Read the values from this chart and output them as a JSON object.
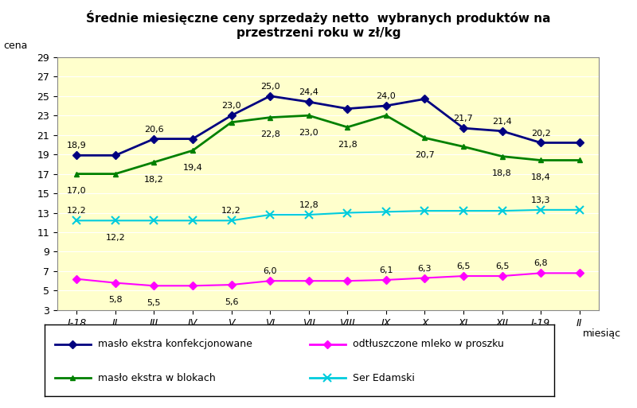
{
  "title": "Średnie miesięczne ceny sprzedaży netto  wybranych produktów na\nprzestrzeni roku w zł/kg",
  "ylabel": "cena",
  "xlabel_note": "miesiąc",
  "x_labels": [
    "I-18",
    "II",
    "III",
    "IV",
    "V",
    "VI",
    "VII",
    "VIII",
    "IX",
    "X",
    "XI",
    "XII",
    "I-19",
    "II"
  ],
  "plot_values": {
    "masło ekstra konfekcjonowane": [
      18.9,
      18.9,
      20.6,
      20.6,
      23.0,
      25.0,
      24.4,
      23.7,
      24.0,
      24.7,
      21.7,
      21.4,
      20.2,
      20.2
    ],
    "masło ekstra w blokach": [
      17.0,
      17.0,
      18.2,
      19.4,
      22.3,
      22.8,
      23.0,
      21.8,
      23.0,
      20.7,
      19.8,
      18.8,
      18.4,
      18.4
    ],
    "odtłuszczone mleko w proszku": [
      6.2,
      5.8,
      5.5,
      5.5,
      5.6,
      6.0,
      6.0,
      6.0,
      6.1,
      6.3,
      6.5,
      6.5,
      6.8,
      6.8
    ],
    "Ser Edamski": [
      12.2,
      12.2,
      12.2,
      12.2,
      12.2,
      12.8,
      12.8,
      13.0,
      13.1,
      13.2,
      13.2,
      13.2,
      13.3,
      13.3
    ]
  },
  "annot_display": {
    "masło ekstra konfekcjonowane": [
      18.9,
      null,
      20.6,
      null,
      23.0,
      25.0,
      24.4,
      null,
      24.0,
      null,
      21.7,
      21.4,
      20.2,
      null
    ],
    "masło ekstra w blokach": [
      17.0,
      null,
      18.2,
      19.4,
      null,
      22.8,
      23.0,
      21.8,
      null,
      20.7,
      null,
      18.8,
      18.4,
      null
    ],
    "odtłuszczone mleko w proszku": [
      null,
      5.8,
      5.5,
      null,
      5.6,
      6.0,
      null,
      null,
      6.1,
      6.3,
      6.5,
      6.5,
      6.8,
      null
    ],
    "Ser Edamski": [
      12.2,
      12.2,
      null,
      null,
      12.2,
      null,
      12.8,
      null,
      null,
      null,
      null,
      null,
      13.3,
      null
    ]
  },
  "annot_offsets": {
    "masło ekstra konfekcjonowane": [
      5,
      5,
      5,
      5,
      5,
      5,
      5,
      5,
      5,
      5,
      5,
      5,
      5,
      5
    ],
    "masło ekstra w blokach": [
      -12,
      -12,
      -12,
      -12,
      -12,
      -12,
      -12,
      -12,
      -12,
      -12,
      -12,
      -12,
      -12,
      -12
    ],
    "odtłuszczone mleko w proszku": [
      5,
      -12,
      -12,
      5,
      -12,
      5,
      5,
      5,
      5,
      5,
      5,
      5,
      5,
      5
    ],
    "Ser Edamski": [
      5,
      -12,
      5,
      5,
      5,
      5,
      5,
      5,
      5,
      5,
      5,
      5,
      5,
      5
    ]
  },
  "series_order": [
    "masło ekstra konfekcjonowane",
    "masło ekstra w blokach",
    "odtłuszczone mleko w proszku",
    "Ser Edamski"
  ],
  "colors": {
    "masło ekstra konfekcjonowane": "#000080",
    "masło ekstra w blokach": "#008000",
    "odtłuszczone mleko w proszku": "#FF00FF",
    "Ser Edamski": "#00CCDD"
  },
  "markers": {
    "masło ekstra konfekcjonowane": "D",
    "masło ekstra w blokach": "^",
    "odtłuszczone mleko w proszku": "D",
    "Ser Edamski": "x"
  },
  "linewidths": {
    "masło ekstra konfekcjonowane": 2.0,
    "masło ekstra w blokach": 2.0,
    "odtłuszczone mleko w proszku": 1.5,
    "Ser Edamski": 1.5
  },
  "ylim": [
    3,
    29
  ],
  "yticks": [
    3,
    5,
    7,
    9,
    11,
    13,
    15,
    17,
    19,
    21,
    23,
    25,
    27,
    29
  ],
  "background_color": "#FFFFCC",
  "title_fontsize": 11,
  "ylabel_fontsize": 9,
  "tick_fontsize": 9,
  "annot_fontsize": 8,
  "legend_fontsize": 9
}
